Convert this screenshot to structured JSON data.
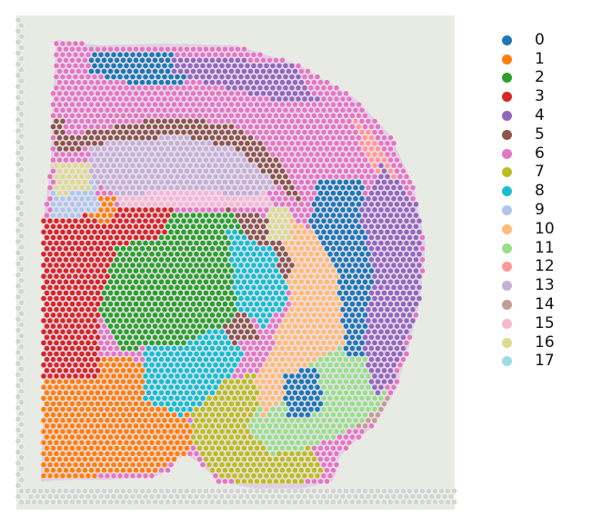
{
  "legend": {
    "items": [
      {
        "label": "0",
        "color": "#1f77b4"
      },
      {
        "label": "1",
        "color": "#ff7f0e"
      },
      {
        "label": "2",
        "color": "#2ca02c"
      },
      {
        "label": "3",
        "color": "#d62728"
      },
      {
        "label": "4",
        "color": "#9467bd"
      },
      {
        "label": "5",
        "color": "#8c564b"
      },
      {
        "label": "6",
        "color": "#e377c2"
      },
      {
        "label": "7",
        "color": "#bcbd22"
      },
      {
        "label": "8",
        "color": "#17becf"
      },
      {
        "label": "9",
        "color": "#aec7e8"
      },
      {
        "label": "10",
        "color": "#ffbb78"
      },
      {
        "label": "11",
        "color": "#98df8a"
      },
      {
        "label": "12",
        "color": "#ff9896"
      },
      {
        "label": "13",
        "color": "#c5b0d5"
      },
      {
        "label": "14",
        "color": "#c49c94"
      },
      {
        "label": "15",
        "color": "#f7b6d2"
      },
      {
        "label": "16",
        "color": "#dbdb8d"
      },
      {
        "label": "17",
        "color": "#9edae5"
      }
    ]
  },
  "colors": {
    "tissue_background": "#e7ebe4",
    "spot_outline": "#ffffff",
    "grid_spot": "#d2d5d0",
    "tissue_stain": "#d7b8e6"
  }
}
